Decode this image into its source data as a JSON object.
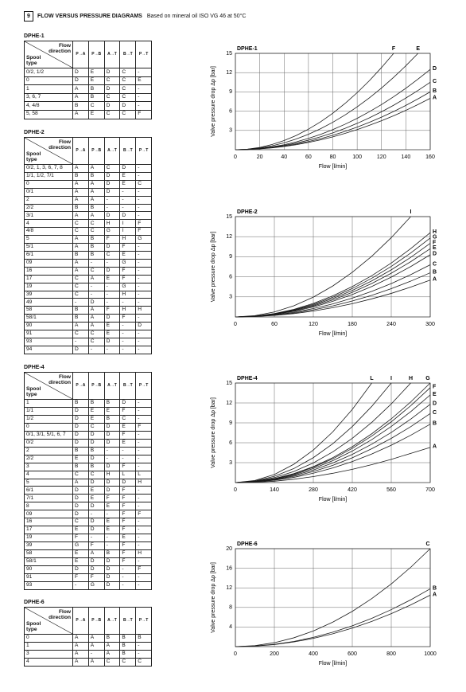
{
  "header": {
    "number": "9",
    "title": "FLOW VERSUS PRESSURE DIAGRAMS",
    "subtitle": "Based on mineral oil ISO VG 46 at 50°C"
  },
  "tables": [
    {
      "title": "DPHE-1",
      "flow_label": [
        "Flow",
        "direction"
      ],
      "spool_label": [
        "Spool",
        "type"
      ],
      "columns": [
        "P→A",
        "P→B",
        "A→T",
        "B→T",
        "P→T"
      ],
      "rows": [
        [
          "0/2, 1/2",
          "D",
          "E",
          "D",
          "C",
          "-"
        ],
        [
          "0",
          "D",
          "E",
          "C",
          "C",
          "E"
        ],
        [
          "1",
          "A",
          "B",
          "D",
          "C",
          "-"
        ],
        [
          "3, 6, 7",
          "A",
          "B",
          "C",
          "C",
          "-"
        ],
        [
          "4, 4/8",
          "B",
          "C",
          "D",
          "D",
          "-"
        ],
        [
          "5, 58",
          "A",
          "E",
          "C",
          "C",
          "F"
        ]
      ]
    },
    {
      "title": "DPHE-2",
      "flow_label": [
        "Flow",
        "direction"
      ],
      "spool_label": [
        "Spool",
        "type"
      ],
      "columns": [
        "P→A",
        "P→B",
        "A→T",
        "B→T",
        "P→T"
      ],
      "rows": [
        [
          "0/2, 1, 3, 6, 7, 8",
          "A",
          "A",
          "C",
          "D",
          "-"
        ],
        [
          "1/1, 1/2, 7/1",
          "B",
          "B",
          "D",
          "E",
          "-"
        ],
        [
          "0",
          "A",
          "A",
          "D",
          "E",
          "C"
        ],
        [
          "0/1",
          "A",
          "A",
          "D",
          "-",
          "-"
        ],
        [
          "2",
          "A",
          "A",
          "-",
          "-",
          "-"
        ],
        [
          "2/2",
          "B",
          "B",
          "-",
          "-",
          "-"
        ],
        [
          "3/1",
          "A",
          "A",
          "D",
          "D",
          "-"
        ],
        [
          "4",
          "C",
          "C",
          "H",
          "I",
          "F"
        ],
        [
          "4/8",
          "C",
          "C",
          "G",
          "I",
          "F"
        ],
        [
          "5",
          "A",
          "B",
          "F",
          "H",
          "G"
        ],
        [
          "5/1",
          "A",
          "B",
          "D",
          "F",
          "-"
        ],
        [
          "6/1",
          "B",
          "B",
          "C",
          "E",
          "-"
        ],
        [
          "09",
          "A",
          "-",
          "-",
          "G",
          "-"
        ],
        [
          "16",
          "A",
          "C",
          "D",
          "F",
          "-"
        ],
        [
          "17",
          "C",
          "A",
          "E",
          "F",
          "-"
        ],
        [
          "19",
          "C",
          "-",
          "-",
          "G",
          "-"
        ],
        [
          "39",
          "C",
          "-",
          "-",
          "H",
          "-"
        ],
        [
          "49",
          "-",
          "D",
          "-",
          "-",
          "-"
        ],
        [
          "58",
          "B",
          "A",
          "F",
          "H",
          "H"
        ],
        [
          "58/1",
          "B",
          "A",
          "D",
          "F",
          "-"
        ],
        [
          "90",
          "A",
          "A",
          "E",
          "-",
          "D"
        ],
        [
          "91",
          "C",
          "C",
          "E",
          "-",
          "-"
        ],
        [
          "93",
          "-",
          "C",
          "D",
          "-",
          "-"
        ],
        [
          "94",
          "D",
          "-",
          "-",
          "-",
          "-"
        ]
      ]
    },
    {
      "title": "DPHE-4",
      "flow_label": [
        "Flow",
        "direction"
      ],
      "spool_label": [
        "Spool",
        "type"
      ],
      "columns": [
        "P→A",
        "P→B",
        "A→T",
        "B→T",
        "P→T"
      ],
      "rows": [
        [
          "1",
          "B",
          "B",
          "B",
          "D",
          "-"
        ],
        [
          "1/1",
          "D",
          "E",
          "E",
          "F",
          "-"
        ],
        [
          "1/2",
          "D",
          "E",
          "B",
          "C",
          "-"
        ],
        [
          "0",
          "D",
          "C",
          "D",
          "E",
          "F"
        ],
        [
          "0/1, 3/1, 5/1, 6, 7",
          "D",
          "D",
          "D",
          "F",
          "-"
        ],
        [
          "0/2",
          "D",
          "D",
          "D",
          "E",
          "-"
        ],
        [
          "2",
          "B",
          "B",
          "-",
          "-",
          "-"
        ],
        [
          "2/2",
          "E",
          "D",
          "-",
          "-",
          "-"
        ],
        [
          "3",
          "B",
          "B",
          "D",
          "F",
          "-"
        ],
        [
          "4",
          "C",
          "C",
          "H",
          "L",
          "L"
        ],
        [
          "5",
          "A",
          "D",
          "D",
          "D",
          "H"
        ],
        [
          "6/1",
          "D",
          "E",
          "D",
          "F",
          "-"
        ],
        [
          "7/1",
          "D",
          "E",
          "F",
          "F",
          "-"
        ],
        [
          "8",
          "D",
          "D",
          "E",
          "F",
          "-"
        ],
        [
          "09",
          "D",
          "-",
          "-",
          "F",
          "F"
        ],
        [
          "16",
          "C",
          "D",
          "E",
          "F",
          "-"
        ],
        [
          "17",
          "E",
          "D",
          "E",
          "F",
          "-"
        ],
        [
          "19",
          "F",
          "-",
          "-",
          "E",
          "-"
        ],
        [
          "39",
          "G",
          "F",
          "-",
          "F",
          "-"
        ],
        [
          "58",
          "E",
          "A",
          "B",
          "F",
          "H"
        ],
        [
          "58/1",
          "E",
          "D",
          "D",
          "F",
          "-"
        ],
        [
          "90",
          "D",
          "D",
          "D",
          "-",
          "F"
        ],
        [
          "91",
          "F",
          "F",
          "D",
          "-",
          "-"
        ],
        [
          "93",
          "-",
          "G",
          "D",
          "-",
          "-"
        ]
      ]
    },
    {
      "title": "DPHE-6",
      "flow_label": [
        "Flow",
        "direction"
      ],
      "spool_label": [
        "Spool",
        "type"
      ],
      "columns": [
        "P→A",
        "P→B",
        "A→T",
        "B→T",
        "P→T"
      ],
      "rows": [
        [
          "0",
          "A",
          "A",
          "B",
          "B",
          "B"
        ],
        [
          "1",
          "A",
          "A",
          "A",
          "B",
          "-"
        ],
        [
          "3",
          "A",
          "-",
          "A",
          "B",
          "-"
        ],
        [
          "4",
          "A",
          "A",
          "C",
          "C",
          "C"
        ]
      ]
    }
  ],
  "chart_data": [
    {
      "type": "line",
      "title": "DPHE-1",
      "x_label": "Flow [l/min]",
      "y_label": "Valve pressure drop Δp [bar]",
      "color": "#1a1a1a",
      "grid": true,
      "x": [
        0,
        10,
        20,
        30,
        40,
        50,
        60,
        70,
        80,
        90,
        100,
        110,
        120,
        130,
        140,
        150,
        160
      ],
      "xlim": [
        0,
        160
      ],
      "xticks": [
        0,
        20,
        40,
        60,
        80,
        100,
        120,
        140,
        160
      ],
      "ylim": [
        0,
        15
      ],
      "yticks": [
        3,
        6,
        9,
        12,
        15
      ],
      "series": [
        {
          "name": "F",
          "values": [
            0,
            0.09,
            0.36,
            0.8,
            1.42,
            2.22,
            3.2,
            4.35,
            5.68,
            7.19,
            8.88,
            10.74,
            12.79,
            15,
            null,
            null,
            null
          ]
        },
        {
          "name": "E",
          "values": [
            0,
            0.07,
            0.27,
            0.6,
            1.07,
            1.67,
            2.4,
            3.27,
            4.27,
            5.4,
            6.67,
            8.07,
            9.6,
            11.27,
            13.07,
            15,
            null
          ]
        },
        {
          "name": "D",
          "values": [
            0,
            0.05,
            0.2,
            0.44,
            0.78,
            1.22,
            1.76,
            2.39,
            3.13,
            3.96,
            4.88,
            5.91,
            7.03,
            8.25,
            9.57,
            10.99,
            12.5
          ]
        },
        {
          "name": "C",
          "values": [
            0,
            0.04,
            0.16,
            0.37,
            0.66,
            1.03,
            1.48,
            2.01,
            2.62,
            3.32,
            4.1,
            4.96,
            5.9,
            6.93,
            8.04,
            9.23,
            10.5
          ]
        },
        {
          "name": "B",
          "values": [
            0,
            0.04,
            0.14,
            0.32,
            0.56,
            0.88,
            1.27,
            1.72,
            2.25,
            2.85,
            3.52,
            4.26,
            5.07,
            5.95,
            6.9,
            7.92,
            9
          ]
        },
        {
          "name": "A",
          "values": [
            0,
            0.03,
            0.13,
            0.28,
            0.5,
            0.78,
            1.13,
            1.53,
            2,
            2.54,
            3.13,
            3.79,
            4.51,
            5.29,
            6.13,
            7.04,
            8
          ]
        }
      ]
    },
    {
      "type": "line",
      "title": "DPHE-2",
      "x_label": "Flow [l/min]",
      "y_label": "Valve pressure drop Δp [bar]",
      "color": "#1a1a1a",
      "grid": true,
      "x": [
        0,
        30,
        60,
        90,
        120,
        150,
        180,
        210,
        240,
        270,
        300
      ],
      "xlim": [
        0,
        300
      ],
      "xticks": [
        0,
        60,
        120,
        180,
        240,
        300
      ],
      "ylim": [
        0,
        15
      ],
      "yticks": [
        3,
        6,
        9,
        12,
        15
      ],
      "series": [
        {
          "name": "I",
          "values": [
            0,
            0.19,
            0.74,
            1.67,
            2.96,
            4.63,
            6.67,
            9.07,
            11.85,
            15,
            null
          ]
        },
        {
          "name": "H",
          "values": [
            0,
            0.13,
            0.5,
            1.13,
            2.02,
            3.15,
            4.54,
            6.17,
            8.06,
            10.21,
            12.6
          ]
        },
        {
          "name": "G",
          "values": [
            0,
            0.12,
            0.47,
            1.06,
            1.89,
            2.95,
            4.25,
            5.78,
            7.55,
            9.56,
            11.8
          ]
        },
        {
          "name": "F",
          "values": [
            0,
            0.11,
            0.44,
            0.99,
            1.76,
            2.75,
            3.96,
            5.39,
            7.04,
            8.91,
            11
          ]
        },
        {
          "name": "E",
          "values": [
            0,
            0.1,
            0.41,
            0.92,
            1.63,
            2.55,
            3.67,
            5,
            6.53,
            8.26,
            10.2
          ]
        },
        {
          "name": "D",
          "values": [
            0,
            0.09,
            0.37,
            0.84,
            1.49,
            2.33,
            3.35,
            4.56,
            5.95,
            7.53,
            9.3
          ]
        },
        {
          "name": "C",
          "values": [
            0,
            0.08,
            0.31,
            0.7,
            1.25,
            1.95,
            2.81,
            3.82,
            4.99,
            6.32,
            7.8
          ]
        },
        {
          "name": "B",
          "values": [
            0,
            0.07,
            0.26,
            0.59,
            1.06,
            1.65,
            2.38,
            3.23,
            4.22,
            5.35,
            6.6
          ]
        },
        {
          "name": "A",
          "values": [
            0,
            0.06,
            0.22,
            0.5,
            0.88,
            1.38,
            1.98,
            2.7,
            3.52,
            4.46,
            5.5
          ]
        }
      ]
    },
    {
      "type": "line",
      "title": "DPHE-4",
      "x_label": "Flow [l/min]",
      "y_label": "Valve pressure drop Δp [bar]",
      "color": "#1a1a1a",
      "grid": true,
      "x": [
        0,
        70,
        140,
        210,
        280,
        350,
        420,
        490,
        560,
        630,
        700
      ],
      "xlim": [
        0,
        700
      ],
      "xticks": [
        0,
        140,
        280,
        420,
        560,
        700
      ],
      "ylim": [
        0,
        15
      ],
      "yticks": [
        3,
        6,
        9,
        12,
        15
      ],
      "series": [
        {
          "name": "L",
          "values": [
            0,
            0.31,
            1.22,
            2.76,
            4.9,
            7.65,
            11.02,
            15,
            null,
            null,
            null
          ]
        },
        {
          "name": "I",
          "values": [
            0,
            0.23,
            0.94,
            2.11,
            3.75,
            5.86,
            8.44,
            11.48,
            15,
            null,
            null
          ]
        },
        {
          "name": "H",
          "values": [
            0,
            0.19,
            0.74,
            1.67,
            2.96,
            4.63,
            6.67,
            9.07,
            11.85,
            15,
            null
          ]
        },
        {
          "name": "G",
          "values": [
            0,
            0.15,
            0.6,
            1.35,
            2.4,
            3.75,
            5.4,
            7.35,
            9.6,
            12.15,
            15
          ]
        },
        {
          "name": "F",
          "values": [
            0,
            0.14,
            0.57,
            1.29,
            2.29,
            3.58,
            5.15,
            7.01,
            9.15,
            11.58,
            14.3
          ]
        },
        {
          "name": "E",
          "values": [
            0,
            0.13,
            0.53,
            1.19,
            2.11,
            3.3,
            4.75,
            6.47,
            8.45,
            10.69,
            13.2
          ]
        },
        {
          "name": "D",
          "values": [
            0,
            0.12,
            0.47,
            1.06,
            1.89,
            2.95,
            4.25,
            5.78,
            7.55,
            9.56,
            11.8
          ]
        },
        {
          "name": "C",
          "values": [
            0,
            0.1,
            0.42,
            0.94,
            1.66,
            2.6,
            3.74,
            5.1,
            6.66,
            8.42,
            10.4
          ]
        },
        {
          "name": "B",
          "values": [
            0,
            0.09,
            0.35,
            0.79,
            1.41,
            2.2,
            3.17,
            4.31,
            5.63,
            7.13,
            8.8
          ]
        },
        {
          "name": "A",
          "values": [
            0,
            0.05,
            0.2,
            0.5,
            0.9,
            1.4,
            2,
            2.7,
            3.5,
            4.4,
            5.3
          ]
        }
      ]
    },
    {
      "type": "line",
      "title": "DPHE-6",
      "x_label": "Flow [l/min]",
      "y_label": "Valve pressure drop Δp [bar]",
      "color": "#1a1a1a",
      "grid": true,
      "x": [
        0,
        100,
        200,
        300,
        400,
        500,
        600,
        700,
        800,
        900,
        1000
      ],
      "xlim": [
        0,
        1000
      ],
      "xticks": [
        0,
        200,
        400,
        600,
        800,
        1000
      ],
      "ylim": [
        0,
        20
      ],
      "yticks": [
        4,
        8,
        12,
        16,
        20
      ],
      "series": [
        {
          "name": "C",
          "values": [
            0,
            0.2,
            0.8,
            1.8,
            3.2,
            5,
            7.2,
            9.8,
            12.8,
            16.2,
            20
          ]
        },
        {
          "name": "B",
          "values": [
            0,
            0.12,
            0.47,
            1.06,
            1.89,
            2.95,
            4.25,
            5.78,
            7.55,
            9.56,
            11.8
          ]
        },
        {
          "name": "A",
          "values": [
            0,
            0.11,
            0.42,
            0.95,
            1.68,
            2.63,
            3.78,
            5.15,
            6.72,
            8.51,
            10.5
          ]
        }
      ]
    }
  ]
}
